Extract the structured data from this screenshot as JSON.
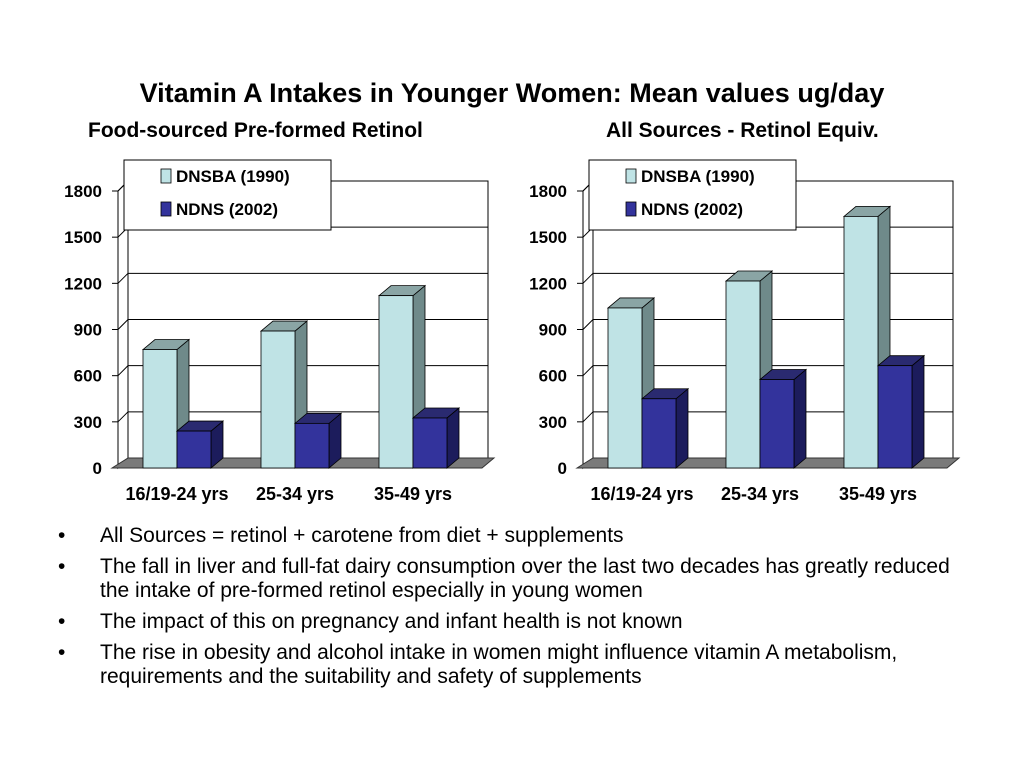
{
  "title": "Vitamin A Intakes in Younger Women: Mean values ug/day",
  "chart_data": [
    {
      "type": "bar",
      "title": "Food-sourced Pre-formed Retinol",
      "categories": [
        "16/19-24 yrs",
        "25-34 yrs",
        "35-49 yrs"
      ],
      "series": [
        {
          "name": "DNSBA (1990)",
          "values": [
            770,
            890,
            1120
          ]
        },
        {
          "name": "NDNS (2002)",
          "values": [
            240,
            290,
            325
          ]
        }
      ],
      "ylim": [
        0,
        1800
      ],
      "yticks": [
        0,
        300,
        600,
        900,
        1200,
        1500,
        1800
      ],
      "grid": true,
      "legend": "top-left"
    },
    {
      "type": "bar",
      "title": "All Sources - Retinol Equiv.",
      "categories": [
        "16/19-24 yrs",
        "25-34 yrs",
        "35-49 yrs"
      ],
      "series": [
        {
          "name": "DNSBA (1990)",
          "values": [
            1040,
            1215,
            1635
          ]
        },
        {
          "name": "NDNS (2002)",
          "values": [
            450,
            575,
            665
          ]
        }
      ],
      "ylim": [
        0,
        1800
      ],
      "yticks": [
        0,
        300,
        600,
        900,
        1200,
        1500,
        1800
      ],
      "grid": true,
      "legend": "top-left"
    }
  ],
  "colors": {
    "series": [
      "#bfe3e5",
      "#33339c"
    ],
    "series_side": [
      "#6f8a8a",
      "#1c1c5c"
    ],
    "series_top": [
      "#8aa5a5",
      "#2a2a70"
    ],
    "floor": "#7a7a7a",
    "grid": "#000000"
  },
  "bullet_symbol": "•",
  "bullets": [
    "All Sources =  retinol + carotene from diet + supplements",
    "The fall in liver and full-fat dairy consumption over the last two decades has greatly reduced the intake of pre-formed retinol especially in young women",
    "The impact of this on pregnancy and infant health is not known",
    "The rise in obesity and alcohol intake in women might influence vitamin A metabolism, requirements and the suitability and safety of supplements"
  ]
}
